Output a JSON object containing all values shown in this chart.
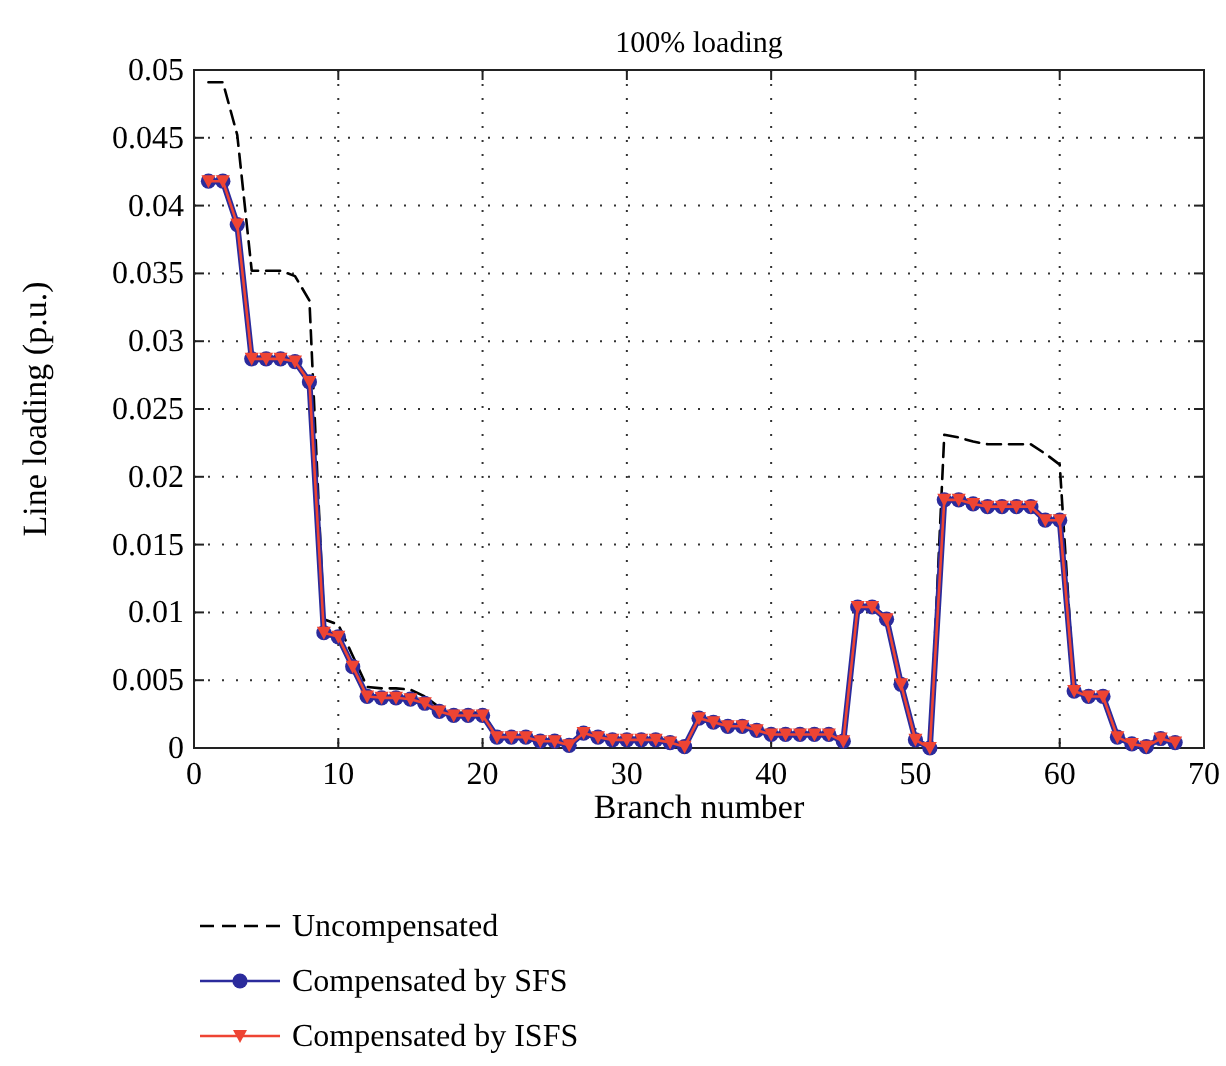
{
  "chart_data": {
    "type": "line",
    "title": "100% loading",
    "xlabel": "Branch number",
    "ylabel": "Line loading (p.u.)",
    "x": [
      1,
      2,
      3,
      4,
      5,
      6,
      7,
      8,
      9,
      10,
      11,
      12,
      13,
      14,
      15,
      16,
      17,
      18,
      19,
      20,
      21,
      22,
      23,
      24,
      25,
      26,
      27,
      28,
      29,
      30,
      31,
      32,
      33,
      34,
      35,
      36,
      37,
      38,
      39,
      40,
      41,
      42,
      43,
      44,
      45,
      46,
      47,
      48,
      49,
      50,
      51,
      52,
      53,
      54,
      55,
      56,
      57,
      58,
      59,
      60,
      61,
      62,
      63,
      64,
      65,
      66,
      67,
      68
    ],
    "xlim": [
      0,
      70
    ],
    "xticks": [
      0,
      10,
      20,
      30,
      40,
      50,
      60,
      70
    ],
    "ylim": [
      0,
      0.05
    ],
    "yticks": [
      0,
      0.005,
      0.01,
      0.015,
      0.02,
      0.025,
      0.03,
      0.035,
      0.04,
      0.045,
      0.05
    ],
    "grid": true,
    "legend": "bottom",
    "series": [
      {
        "name": "Uncompensated",
        "color": "#000000",
        "line_style": "dashed",
        "marker": "none",
        "values": [
          0.0491,
          0.0491,
          0.0452,
          0.0352,
          0.0352,
          0.0352,
          0.0348,
          0.033,
          0.0095,
          0.0091,
          0.0068,
          0.0045,
          0.0044,
          0.0044,
          0.0043,
          0.0038,
          0.003,
          0.0026,
          0.0026,
          0.0026,
          0.0009,
          0.0009,
          0.0009,
          0.0006,
          0.0006,
          0.0003,
          0.0012,
          0.0009,
          0.0007,
          0.0007,
          0.0007,
          0.0007,
          0.0005,
          0.0002,
          0.0023,
          0.002,
          0.0017,
          0.0017,
          0.0014,
          0.0011,
          0.0011,
          0.0011,
          0.0011,
          0.0011,
          0.0006,
          0.0104,
          0.0104,
          0.0095,
          0.0047,
          0.0006,
          0.0,
          0.0231,
          0.0229,
          0.0226,
          0.0224,
          0.0224,
          0.0224,
          0.0224,
          0.0217,
          0.0209,
          0.0043,
          0.0038,
          0.0038,
          0.0008,
          0.0003,
          0.0001,
          0.0007,
          0.0004
        ]
      },
      {
        "name": "Compensated by SFS",
        "color": "#2b2b9c",
        "line_style": "solid",
        "marker": "circle",
        "values": [
          0.0418,
          0.0418,
          0.0386,
          0.0287,
          0.0287,
          0.0287,
          0.0285,
          0.027,
          0.0085,
          0.0082,
          0.006,
          0.0038,
          0.0037,
          0.0037,
          0.0036,
          0.0033,
          0.0027,
          0.0024,
          0.0024,
          0.0024,
          0.0008,
          0.0008,
          0.0008,
          0.0005,
          0.0005,
          0.0002,
          0.0011,
          0.0008,
          0.0006,
          0.0006,
          0.0006,
          0.0006,
          0.0004,
          0.0001,
          0.0022,
          0.0019,
          0.0016,
          0.0016,
          0.0013,
          0.001,
          0.001,
          0.001,
          0.001,
          0.001,
          0.0005,
          0.0104,
          0.0104,
          0.0095,
          0.0047,
          0.0006,
          0.0,
          0.0183,
          0.0183,
          0.018,
          0.0178,
          0.0178,
          0.0178,
          0.0178,
          0.0168,
          0.0168,
          0.0042,
          0.0038,
          0.0038,
          0.0008,
          0.0003,
          0.0001,
          0.0007,
          0.0004
        ]
      },
      {
        "name": "Compensated by ISFS",
        "color": "#ee4433",
        "line_style": "solid",
        "marker": "triangle",
        "values": [
          0.0418,
          0.0418,
          0.0386,
          0.0287,
          0.0287,
          0.0287,
          0.0285,
          0.027,
          0.0085,
          0.0082,
          0.006,
          0.0038,
          0.0037,
          0.0037,
          0.0036,
          0.0033,
          0.0027,
          0.0024,
          0.0024,
          0.0024,
          0.0008,
          0.0008,
          0.0008,
          0.0005,
          0.0005,
          0.0002,
          0.0011,
          0.0008,
          0.0006,
          0.0006,
          0.0006,
          0.0006,
          0.0004,
          0.0001,
          0.0022,
          0.0019,
          0.0016,
          0.0016,
          0.0013,
          0.001,
          0.001,
          0.001,
          0.001,
          0.001,
          0.0005,
          0.0104,
          0.0104,
          0.0095,
          0.0047,
          0.0006,
          0.0,
          0.0183,
          0.0183,
          0.018,
          0.0178,
          0.0178,
          0.0178,
          0.0178,
          0.0168,
          0.0168,
          0.0042,
          0.0038,
          0.0038,
          0.0008,
          0.0003,
          0.0001,
          0.0007,
          0.0004
        ]
      }
    ]
  }
}
